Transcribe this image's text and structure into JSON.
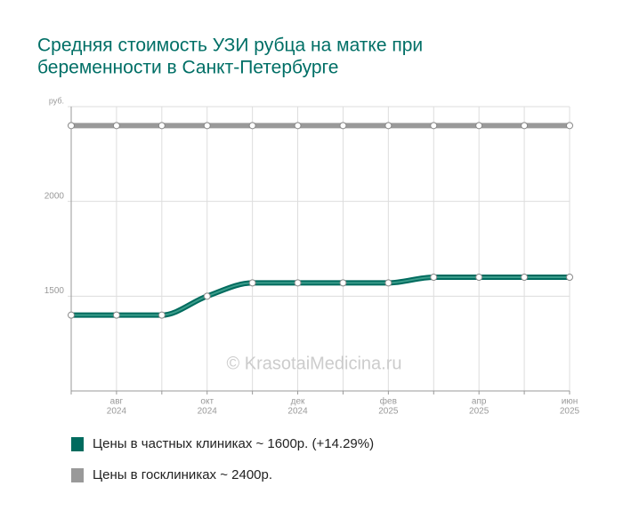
{
  "chart_data": {
    "type": "line",
    "title": [
      "Средняя стоимость УЗИ рубца на матке при",
      "беременности в Санкт-Петербурге"
    ],
    "annotation": "© KrasotaiMedicina.ru",
    "categories": [
      null,
      [
        "авг",
        "2024"
      ],
      null,
      [
        "окт",
        "2024"
      ],
      null,
      [
        "дек",
        "2024"
      ],
      null,
      [
        "фев",
        "2025"
      ],
      null,
      [
        "апр",
        "2025"
      ],
      null,
      [
        "июн",
        "2025"
      ]
    ],
    "series": [
      {
        "name": "Цены в госклиниках ~ 2400р.",
        "color": "#999999",
        "values": [
          2400,
          2400,
          2400,
          2400,
          2400,
          2400,
          2400,
          2400,
          2400,
          2400,
          2400,
          2400
        ]
      },
      {
        "name": "Цены в частных клиниках ~ 1600р. (+14.29%)",
        "color": "#006b5e",
        "values": [
          1400,
          1400,
          1400,
          1500,
          1570,
          1570,
          1570,
          1570,
          1600,
          1600,
          1600,
          1600
        ]
      }
    ],
    "legend_order": [
      1,
      0
    ],
    "ylim": [
      1000,
      2500
    ],
    "yticks": [
      1500,
      2000,
      {
        "value": 2500,
        "label": "руб."
      }
    ],
    "grid": true
  }
}
